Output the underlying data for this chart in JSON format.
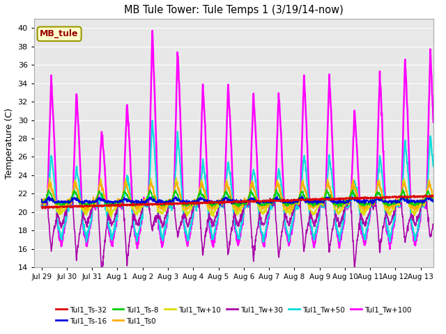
{
  "title": "MB Tule Tower: Tule Temps 1 (3/19/14-now)",
  "ylabel": "Temperature (C)",
  "ylim": [
    14,
    41
  ],
  "yticks": [
    14,
    16,
    18,
    20,
    22,
    24,
    26,
    28,
    30,
    32,
    34,
    36,
    38,
    40
  ],
  "xtick_labels": [
    "Jul 29",
    "Jul 30",
    "Jul 31",
    "Aug 1",
    "Aug 2",
    "Aug 3",
    "Aug 4",
    "Aug 5",
    "Aug 6",
    "Aug 7",
    "Aug 8",
    "Aug 9",
    "Aug 10",
    "Aug 11",
    "Aug 12",
    "Aug 13"
  ],
  "xtick_positions": [
    0,
    1,
    2,
    3,
    4,
    5,
    6,
    7,
    8,
    9,
    10,
    11,
    12,
    13,
    14,
    15
  ],
  "series": {
    "Tul1_Ts-32": {
      "color": "#dd0000",
      "lw": 1.5
    },
    "Tul1_Ts-16": {
      "color": "#0000dd",
      "lw": 1.2
    },
    "Tul1_Ts-8": {
      "color": "#00cc00",
      "lw": 1.2
    },
    "Tul1_Ts0": {
      "color": "#ffaa00",
      "lw": 1.2
    },
    "Tul1_Tw+10": {
      "color": "#dddd00",
      "lw": 1.2
    },
    "Tul1_Tw+30": {
      "color": "#aa00aa",
      "lw": 1.2
    },
    "Tul1_Tw+50": {
      "color": "#00dddd",
      "lw": 1.5
    },
    "Tul1_Tw+100": {
      "color": "#ff00ff",
      "lw": 1.8
    }
  },
  "spike_heights": [
    35,
    33,
    29,
    32,
    40,
    38,
    34,
    34,
    33,
    33,
    35,
    35,
    31,
    35,
    37,
    38
  ],
  "legend_box_color": "#ffffcc",
  "legend_box_edge": "#999900",
  "legend_text": "MB_tule",
  "background_color": "#ffffff",
  "plot_bg_color": "#e8e8e8",
  "grid_color": "#ffffff"
}
